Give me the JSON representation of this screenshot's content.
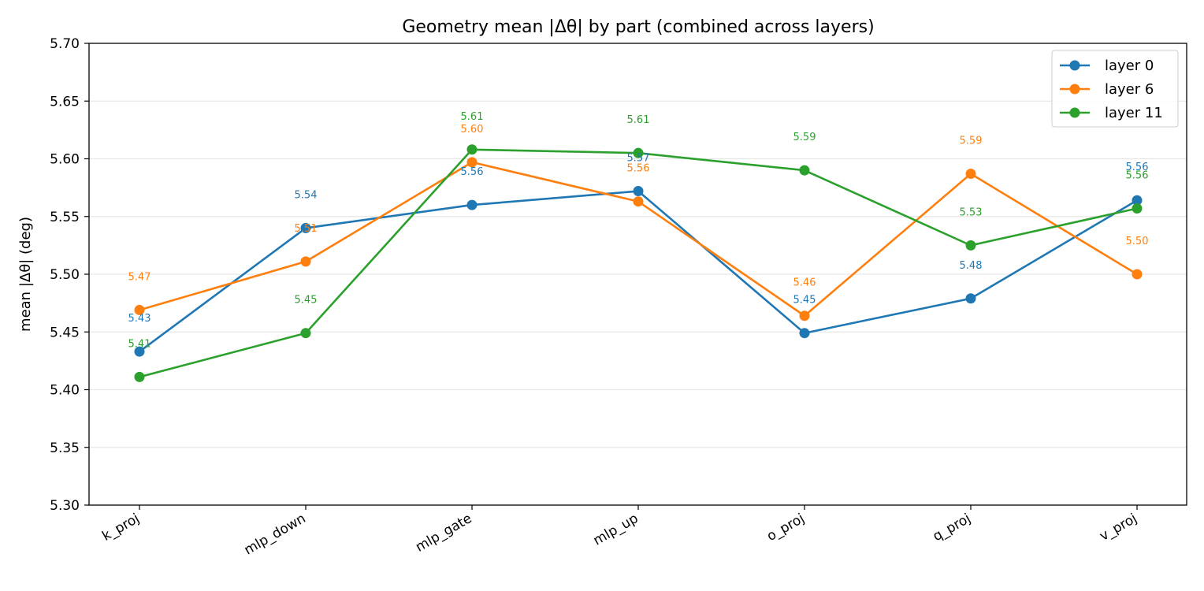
{
  "chart_data": {
    "type": "line",
    "title": "Geometry mean |Δθ| by part (combined across layers)",
    "xlabel": "",
    "ylabel": "mean |Δθ| (deg)",
    "categories": [
      "k_proj",
      "mlp_down",
      "mlp_gate",
      "mlp_up",
      "o_proj",
      "q_proj",
      "v_proj"
    ],
    "ylim": [
      5.3,
      5.7
    ],
    "yticks": [
      "5.30",
      "5.35",
      "5.40",
      "5.45",
      "5.50",
      "5.55",
      "5.60",
      "5.65",
      "5.70"
    ],
    "grid": "horizontal",
    "legend_position": "top-right",
    "series": [
      {
        "name": "layer 0",
        "color": "#1f77b4",
        "values": [
          5.433,
          5.54,
          5.56,
          5.572,
          5.449,
          5.479,
          5.564
        ],
        "labels": [
          "5.43",
          "5.54",
          "5.56",
          "5.57",
          "5.45",
          "5.48",
          "5.56"
        ]
      },
      {
        "name": "layer 6",
        "color": "#ff7f0e",
        "values": [
          5.469,
          5.511,
          5.597,
          5.563,
          5.464,
          5.587,
          5.5
        ],
        "labels": [
          "5.47",
          "5.51",
          "5.60",
          "5.56",
          "5.46",
          "5.59",
          "5.50"
        ]
      },
      {
        "name": "layer 11",
        "color": "#2ca02c",
        "values": [
          5.411,
          5.449,
          5.608,
          5.605,
          5.59,
          5.525,
          5.557
        ],
        "labels": [
          "5.41",
          "5.45",
          "5.61",
          "5.61",
          "5.59",
          "5.53",
          "5.56"
        ]
      }
    ]
  }
}
